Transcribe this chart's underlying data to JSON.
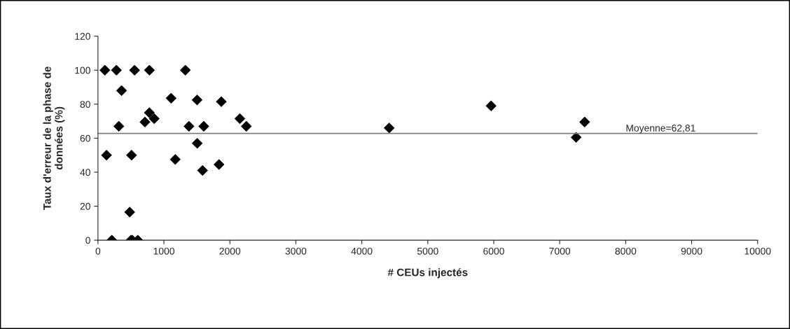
{
  "chart_data": {
    "type": "scatter",
    "xlabel": "# CEUs injectés",
    "ylabel": "Taux d'erreur de la phase de\ndonnées (%)",
    "x": [
      105,
      280,
      555,
      780,
      1325,
      358,
      316,
      130,
      509,
      210,
      481,
      500,
      520,
      604,
      1109,
      779,
      712,
      853,
      1172,
      1379,
      1503,
      1505,
      1604,
      1586,
      1835,
      1870,
      2151,
      2249,
      4415,
      5960,
      7249,
      7378
    ],
    "values": [
      100,
      100,
      100,
      100,
      100,
      88,
      67,
      50,
      50,
      0,
      16.5,
      0,
      0,
      0,
      83.5,
      75,
      69.5,
      71.5,
      47.5,
      67,
      82.5,
      57,
      67,
      41,
      44.5,
      81.5,
      71.5,
      67,
      66,
      79,
      60.5,
      69.5
    ],
    "color": "#000000",
    "marker": "diamond",
    "xlim": [
      0,
      10000
    ],
    "xticks": [
      0,
      1000,
      2000,
      3000,
      4000,
      5000,
      6000,
      7000,
      8000,
      9000,
      10000
    ],
    "ylim": [
      0,
      120
    ],
    "yticks": [
      0,
      20,
      40,
      60,
      80,
      100,
      120
    ],
    "grid": false,
    "ref_lines": [
      {
        "axis": "y",
        "value": 62.81,
        "label": "Moyenne=62,81",
        "color": "#808080"
      }
    ]
  }
}
